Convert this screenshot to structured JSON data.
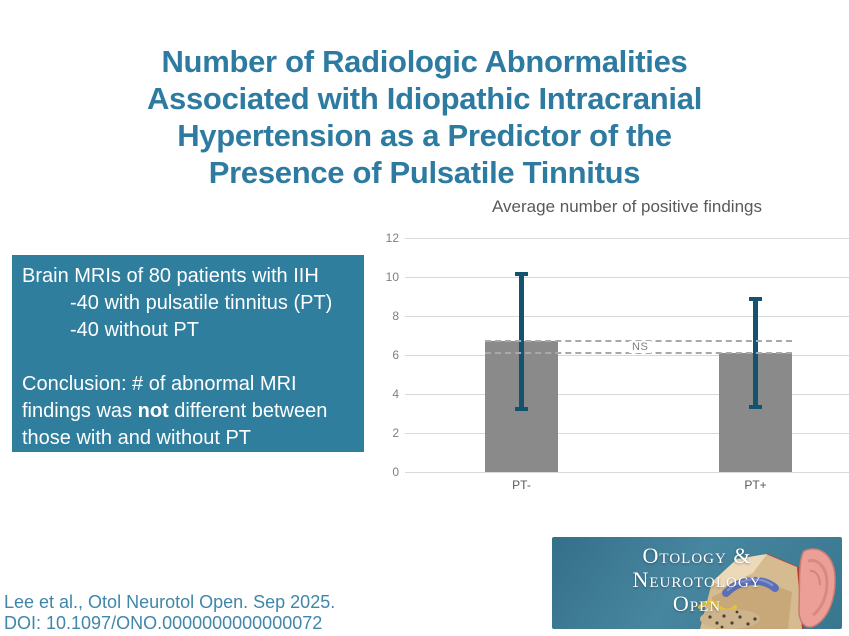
{
  "slide": {
    "title_lines": [
      "Number of Radiologic Abnormalities",
      "Associated with Idiopathic Intracranial",
      "Hypertension as a Predictor of the",
      "Presence of Pulsatile Tinnitus"
    ]
  },
  "info_box": {
    "line1": "Brain MRIs of 80 patients with IIH",
    "line2": "-40 with pulsatile tinnitus (PT)",
    "line3": "-40 without PT",
    "conclusion_part1": "Conclusion: # of abnormal MRI findings was ",
    "conclusion_bold": "not",
    "conclusion_part2": " different between those with and without PT"
  },
  "chart_data": {
    "type": "bar",
    "title": "Average number of positive findings",
    "categories": [
      "PT-",
      "PT+"
    ],
    "values": [
      6.7,
      6.1
    ],
    "error_high": [
      10.2,
      8.9
    ],
    "error_low": [
      3.2,
      3.3
    ],
    "annotation": "NS",
    "ylim": [
      0,
      12
    ],
    "yticks": [
      0,
      2,
      4,
      6,
      8,
      10,
      12
    ],
    "grid": true,
    "legend": "none",
    "bar_color": "#8a8a8a",
    "error_color": "#13536f"
  },
  "logo": {
    "line1": "Otology &",
    "line2": "Neurotology",
    "line3": "Open"
  },
  "citation": {
    "line1": "Lee et al., Otol Neurotol Open. Sep 2025.",
    "line2": "DOI: 10.1097/ONO.0000000000000072"
  }
}
